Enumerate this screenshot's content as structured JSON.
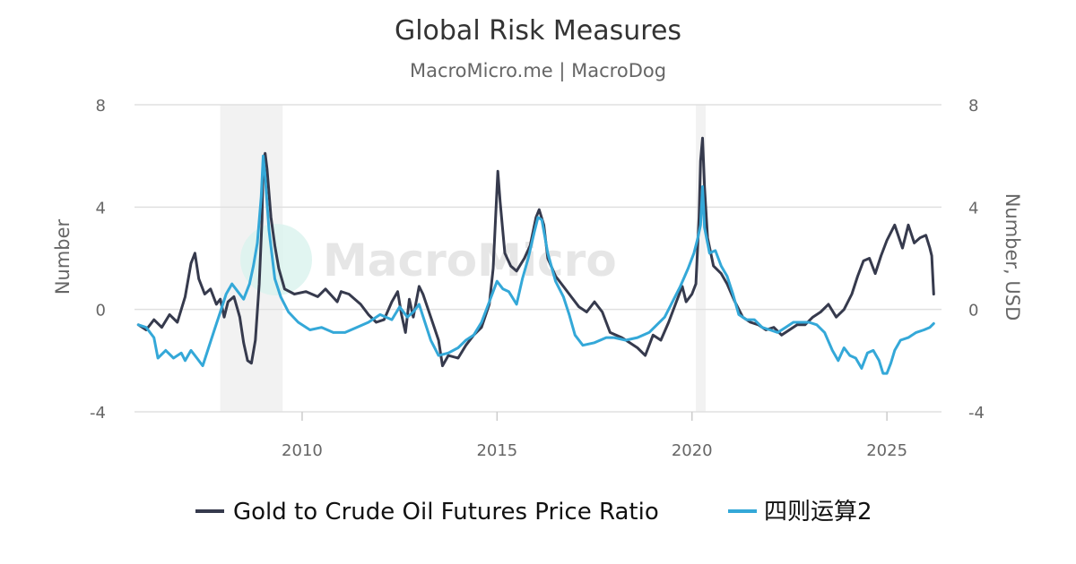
{
  "chart_data": {
    "type": "line",
    "title": "Global Risk Measures",
    "subtitle": "MacroMicro.me | MacroDog",
    "watermark": "MacroMicro",
    "y_left": {
      "label": "Number",
      "range": [
        -4,
        8
      ],
      "ticks": [
        "-4",
        "0",
        "4",
        "8"
      ]
    },
    "y_right": {
      "label": "Number, USD",
      "range": [
        -4,
        8
      ],
      "ticks": [
        "-4",
        "0",
        "4",
        "8"
      ]
    },
    "x_axis": {
      "range": [
        2005.7,
        2026.4
      ],
      "ticks": [
        2010,
        2015,
        2020,
        2025
      ],
      "tick_labels": [
        "2010",
        "2015",
        "2020",
        "2025"
      ]
    },
    "shaded_periods": [
      [
        2007.9,
        2009.5
      ],
      [
        2020.1,
        2020.35
      ]
    ],
    "grid": true,
    "legend_position": "bottom",
    "series": [
      {
        "name": "Gold to Crude Oil Futures Price Ratio",
        "color": "#363a4d",
        "points": [
          [
            2005.8,
            -0.6
          ],
          [
            2006.0,
            -0.8
          ],
          [
            2006.2,
            -0.4
          ],
          [
            2006.4,
            -0.7
          ],
          [
            2006.6,
            -0.2
          ],
          [
            2006.8,
            -0.5
          ],
          [
            2007.0,
            0.5
          ],
          [
            2007.15,
            1.8
          ],
          [
            2007.25,
            2.2
          ],
          [
            2007.35,
            1.2
          ],
          [
            2007.5,
            0.6
          ],
          [
            2007.65,
            0.8
          ],
          [
            2007.8,
            0.2
          ],
          [
            2007.9,
            0.4
          ],
          [
            2008.0,
            -0.3
          ],
          [
            2008.1,
            0.3
          ],
          [
            2008.25,
            0.5
          ],
          [
            2008.4,
            -0.3
          ],
          [
            2008.5,
            -1.3
          ],
          [
            2008.6,
            -2.0
          ],
          [
            2008.7,
            -2.1
          ],
          [
            2008.8,
            -1.2
          ],
          [
            2008.9,
            1.0
          ],
          [
            2008.97,
            3.5
          ],
          [
            2009.0,
            5.8
          ],
          [
            2009.05,
            6.1
          ],
          [
            2009.1,
            5.5
          ],
          [
            2009.2,
            3.6
          ],
          [
            2009.3,
            2.5
          ],
          [
            2009.4,
            1.6
          ],
          [
            2009.55,
            0.8
          ],
          [
            2009.8,
            0.6
          ],
          [
            2010.1,
            0.7
          ],
          [
            2010.4,
            0.5
          ],
          [
            2010.6,
            0.8
          ],
          [
            2010.9,
            0.3
          ],
          [
            2011.0,
            0.7
          ],
          [
            2011.2,
            0.6
          ],
          [
            2011.5,
            0.2
          ],
          [
            2011.7,
            -0.2
          ],
          [
            2011.9,
            -0.5
          ],
          [
            2012.1,
            -0.4
          ],
          [
            2012.3,
            0.3
          ],
          [
            2012.45,
            0.7
          ],
          [
            2012.55,
            -0.2
          ],
          [
            2012.65,
            -0.9
          ],
          [
            2012.75,
            0.4
          ],
          [
            2012.85,
            -0.3
          ],
          [
            2013.0,
            0.9
          ],
          [
            2013.1,
            0.6
          ],
          [
            2013.3,
            -0.3
          ],
          [
            2013.5,
            -1.2
          ],
          [
            2013.6,
            -2.2
          ],
          [
            2013.75,
            -1.8
          ],
          [
            2014.0,
            -1.9
          ],
          [
            2014.2,
            -1.4
          ],
          [
            2014.4,
            -1.0
          ],
          [
            2014.6,
            -0.7
          ],
          [
            2014.8,
            0.2
          ],
          [
            2014.9,
            1.6
          ],
          [
            2014.97,
            3.8
          ],
          [
            2015.02,
            5.4
          ],
          [
            2015.08,
            4.2
          ],
          [
            2015.2,
            2.2
          ],
          [
            2015.35,
            1.7
          ],
          [
            2015.5,
            1.5
          ],
          [
            2015.7,
            2.0
          ],
          [
            2015.85,
            2.5
          ],
          [
            2016.0,
            3.6
          ],
          [
            2016.08,
            3.9
          ],
          [
            2016.2,
            3.3
          ],
          [
            2016.3,
            2.0
          ],
          [
            2016.5,
            1.3
          ],
          [
            2016.7,
            0.9
          ],
          [
            2016.9,
            0.5
          ],
          [
            2017.1,
            0.1
          ],
          [
            2017.3,
            -0.1
          ],
          [
            2017.5,
            0.3
          ],
          [
            2017.7,
            -0.1
          ],
          [
            2017.9,
            -0.9
          ],
          [
            2018.2,
            -1.1
          ],
          [
            2018.4,
            -1.3
          ],
          [
            2018.6,
            -1.5
          ],
          [
            2018.8,
            -1.8
          ],
          [
            2019.0,
            -1.0
          ],
          [
            2019.2,
            -1.2
          ],
          [
            2019.4,
            -0.5
          ],
          [
            2019.6,
            0.3
          ],
          [
            2019.75,
            0.9
          ],
          [
            2019.85,
            0.3
          ],
          [
            2020.0,
            0.6
          ],
          [
            2020.1,
            1.0
          ],
          [
            2020.18,
            3.6
          ],
          [
            2020.22,
            5.8
          ],
          [
            2020.27,
            6.7
          ],
          [
            2020.32,
            4.8
          ],
          [
            2020.4,
            2.8
          ],
          [
            2020.55,
            1.7
          ],
          [
            2020.75,
            1.4
          ],
          [
            2020.9,
            1.0
          ],
          [
            2021.1,
            0.3
          ],
          [
            2021.3,
            -0.3
          ],
          [
            2021.5,
            -0.5
          ],
          [
            2021.7,
            -0.6
          ],
          [
            2021.9,
            -0.8
          ],
          [
            2022.1,
            -0.7
          ],
          [
            2022.3,
            -1.0
          ],
          [
            2022.5,
            -0.8
          ],
          [
            2022.7,
            -0.6
          ],
          [
            2022.9,
            -0.6
          ],
          [
            2023.1,
            -0.3
          ],
          [
            2023.3,
            -0.1
          ],
          [
            2023.5,
            0.2
          ],
          [
            2023.7,
            -0.3
          ],
          [
            2023.9,
            0.0
          ],
          [
            2024.1,
            0.6
          ],
          [
            2024.25,
            1.3
          ],
          [
            2024.4,
            1.9
          ],
          [
            2024.55,
            2.0
          ],
          [
            2024.7,
            1.4
          ],
          [
            2024.85,
            2.1
          ],
          [
            2025.0,
            2.7
          ],
          [
            2025.2,
            3.3
          ],
          [
            2025.4,
            2.4
          ],
          [
            2025.55,
            3.3
          ],
          [
            2025.7,
            2.6
          ],
          [
            2025.85,
            2.8
          ],
          [
            2026.0,
            2.9
          ],
          [
            2026.1,
            2.4
          ],
          [
            2026.15,
            2.1
          ],
          [
            2026.2,
            0.6
          ]
        ]
      },
      {
        "name": "四则运算2",
        "color": "#34a8d8",
        "points": [
          [
            2005.8,
            -0.6
          ],
          [
            2006.0,
            -0.7
          ],
          [
            2006.2,
            -1.1
          ],
          [
            2006.3,
            -1.9
          ],
          [
            2006.5,
            -1.6
          ],
          [
            2006.7,
            -1.9
          ],
          [
            2006.9,
            -1.7
          ],
          [
            2007.0,
            -2.0
          ],
          [
            2007.15,
            -1.6
          ],
          [
            2007.3,
            -1.9
          ],
          [
            2007.45,
            -2.2
          ],
          [
            2007.6,
            -1.5
          ],
          [
            2007.75,
            -0.8
          ],
          [
            2007.9,
            -0.1
          ],
          [
            2008.05,
            0.6
          ],
          [
            2008.2,
            1.0
          ],
          [
            2008.35,
            0.7
          ],
          [
            2008.5,
            0.4
          ],
          [
            2008.65,
            1.0
          ],
          [
            2008.75,
            1.7
          ],
          [
            2008.85,
            2.6
          ],
          [
            2008.95,
            4.4
          ],
          [
            2009.0,
            6.0
          ],
          [
            2009.05,
            5.2
          ],
          [
            2009.15,
            3.1
          ],
          [
            2009.3,
            1.2
          ],
          [
            2009.45,
            0.5
          ],
          [
            2009.65,
            -0.1
          ],
          [
            2009.9,
            -0.5
          ],
          [
            2010.2,
            -0.8
          ],
          [
            2010.5,
            -0.7
          ],
          [
            2010.8,
            -0.9
          ],
          [
            2011.1,
            -0.9
          ],
          [
            2011.4,
            -0.7
          ],
          [
            2011.7,
            -0.5
          ],
          [
            2012.0,
            -0.2
          ],
          [
            2012.3,
            -0.4
          ],
          [
            2012.5,
            0.1
          ],
          [
            2012.7,
            -0.3
          ],
          [
            2012.85,
            -0.1
          ],
          [
            2013.0,
            0.2
          ],
          [
            2013.15,
            -0.5
          ],
          [
            2013.3,
            -1.2
          ],
          [
            2013.5,
            -1.8
          ],
          [
            2013.75,
            -1.7
          ],
          [
            2014.0,
            -1.5
          ],
          [
            2014.2,
            -1.2
          ],
          [
            2014.4,
            -1.0
          ],
          [
            2014.6,
            -0.5
          ],
          [
            2014.8,
            0.3
          ],
          [
            2015.0,
            1.1
          ],
          [
            2015.15,
            0.8
          ],
          [
            2015.3,
            0.7
          ],
          [
            2015.5,
            0.2
          ],
          [
            2015.65,
            1.2
          ],
          [
            2015.8,
            2.0
          ],
          [
            2015.95,
            3.0
          ],
          [
            2016.05,
            3.6
          ],
          [
            2016.15,
            3.5
          ],
          [
            2016.3,
            2.2
          ],
          [
            2016.5,
            1.1
          ],
          [
            2016.7,
            0.5
          ],
          [
            2016.85,
            -0.2
          ],
          [
            2017.0,
            -1.0
          ],
          [
            2017.2,
            -1.4
          ],
          [
            2017.5,
            -1.3
          ],
          [
            2017.8,
            -1.1
          ],
          [
            2018.0,
            -1.1
          ],
          [
            2018.3,
            -1.2
          ],
          [
            2018.6,
            -1.1
          ],
          [
            2018.9,
            -0.9
          ],
          [
            2019.1,
            -0.6
          ],
          [
            2019.3,
            -0.3
          ],
          [
            2019.5,
            0.3
          ],
          [
            2019.7,
            0.9
          ],
          [
            2019.9,
            1.6
          ],
          [
            2020.05,
            2.2
          ],
          [
            2020.15,
            2.8
          ],
          [
            2020.22,
            3.3
          ],
          [
            2020.27,
            4.8
          ],
          [
            2020.32,
            3.2
          ],
          [
            2020.45,
            2.2
          ],
          [
            2020.6,
            2.3
          ],
          [
            2020.75,
            1.7
          ],
          [
            2020.9,
            1.3
          ],
          [
            2021.05,
            0.6
          ],
          [
            2021.2,
            -0.2
          ],
          [
            2021.4,
            -0.4
          ],
          [
            2021.6,
            -0.4
          ],
          [
            2021.8,
            -0.7
          ],
          [
            2022.0,
            -0.8
          ],
          [
            2022.2,
            -0.9
          ],
          [
            2022.4,
            -0.7
          ],
          [
            2022.6,
            -0.5
          ],
          [
            2022.8,
            -0.5
          ],
          [
            2023.0,
            -0.5
          ],
          [
            2023.2,
            -0.6
          ],
          [
            2023.4,
            -0.9
          ],
          [
            2023.6,
            -1.6
          ],
          [
            2023.75,
            -2.0
          ],
          [
            2023.9,
            -1.5
          ],
          [
            2024.05,
            -1.8
          ],
          [
            2024.2,
            -1.9
          ],
          [
            2024.35,
            -2.3
          ],
          [
            2024.5,
            -1.7
          ],
          [
            2024.65,
            -1.6
          ],
          [
            2024.8,
            -2.0
          ],
          [
            2024.9,
            -2.5
          ],
          [
            2025.0,
            -2.5
          ],
          [
            2025.1,
            -2.1
          ],
          [
            2025.2,
            -1.6
          ],
          [
            2025.35,
            -1.2
          ],
          [
            2025.55,
            -1.1
          ],
          [
            2025.75,
            -0.9
          ],
          [
            2025.95,
            -0.8
          ],
          [
            2026.1,
            -0.7
          ],
          [
            2026.2,
            -0.55
          ]
        ]
      }
    ]
  }
}
